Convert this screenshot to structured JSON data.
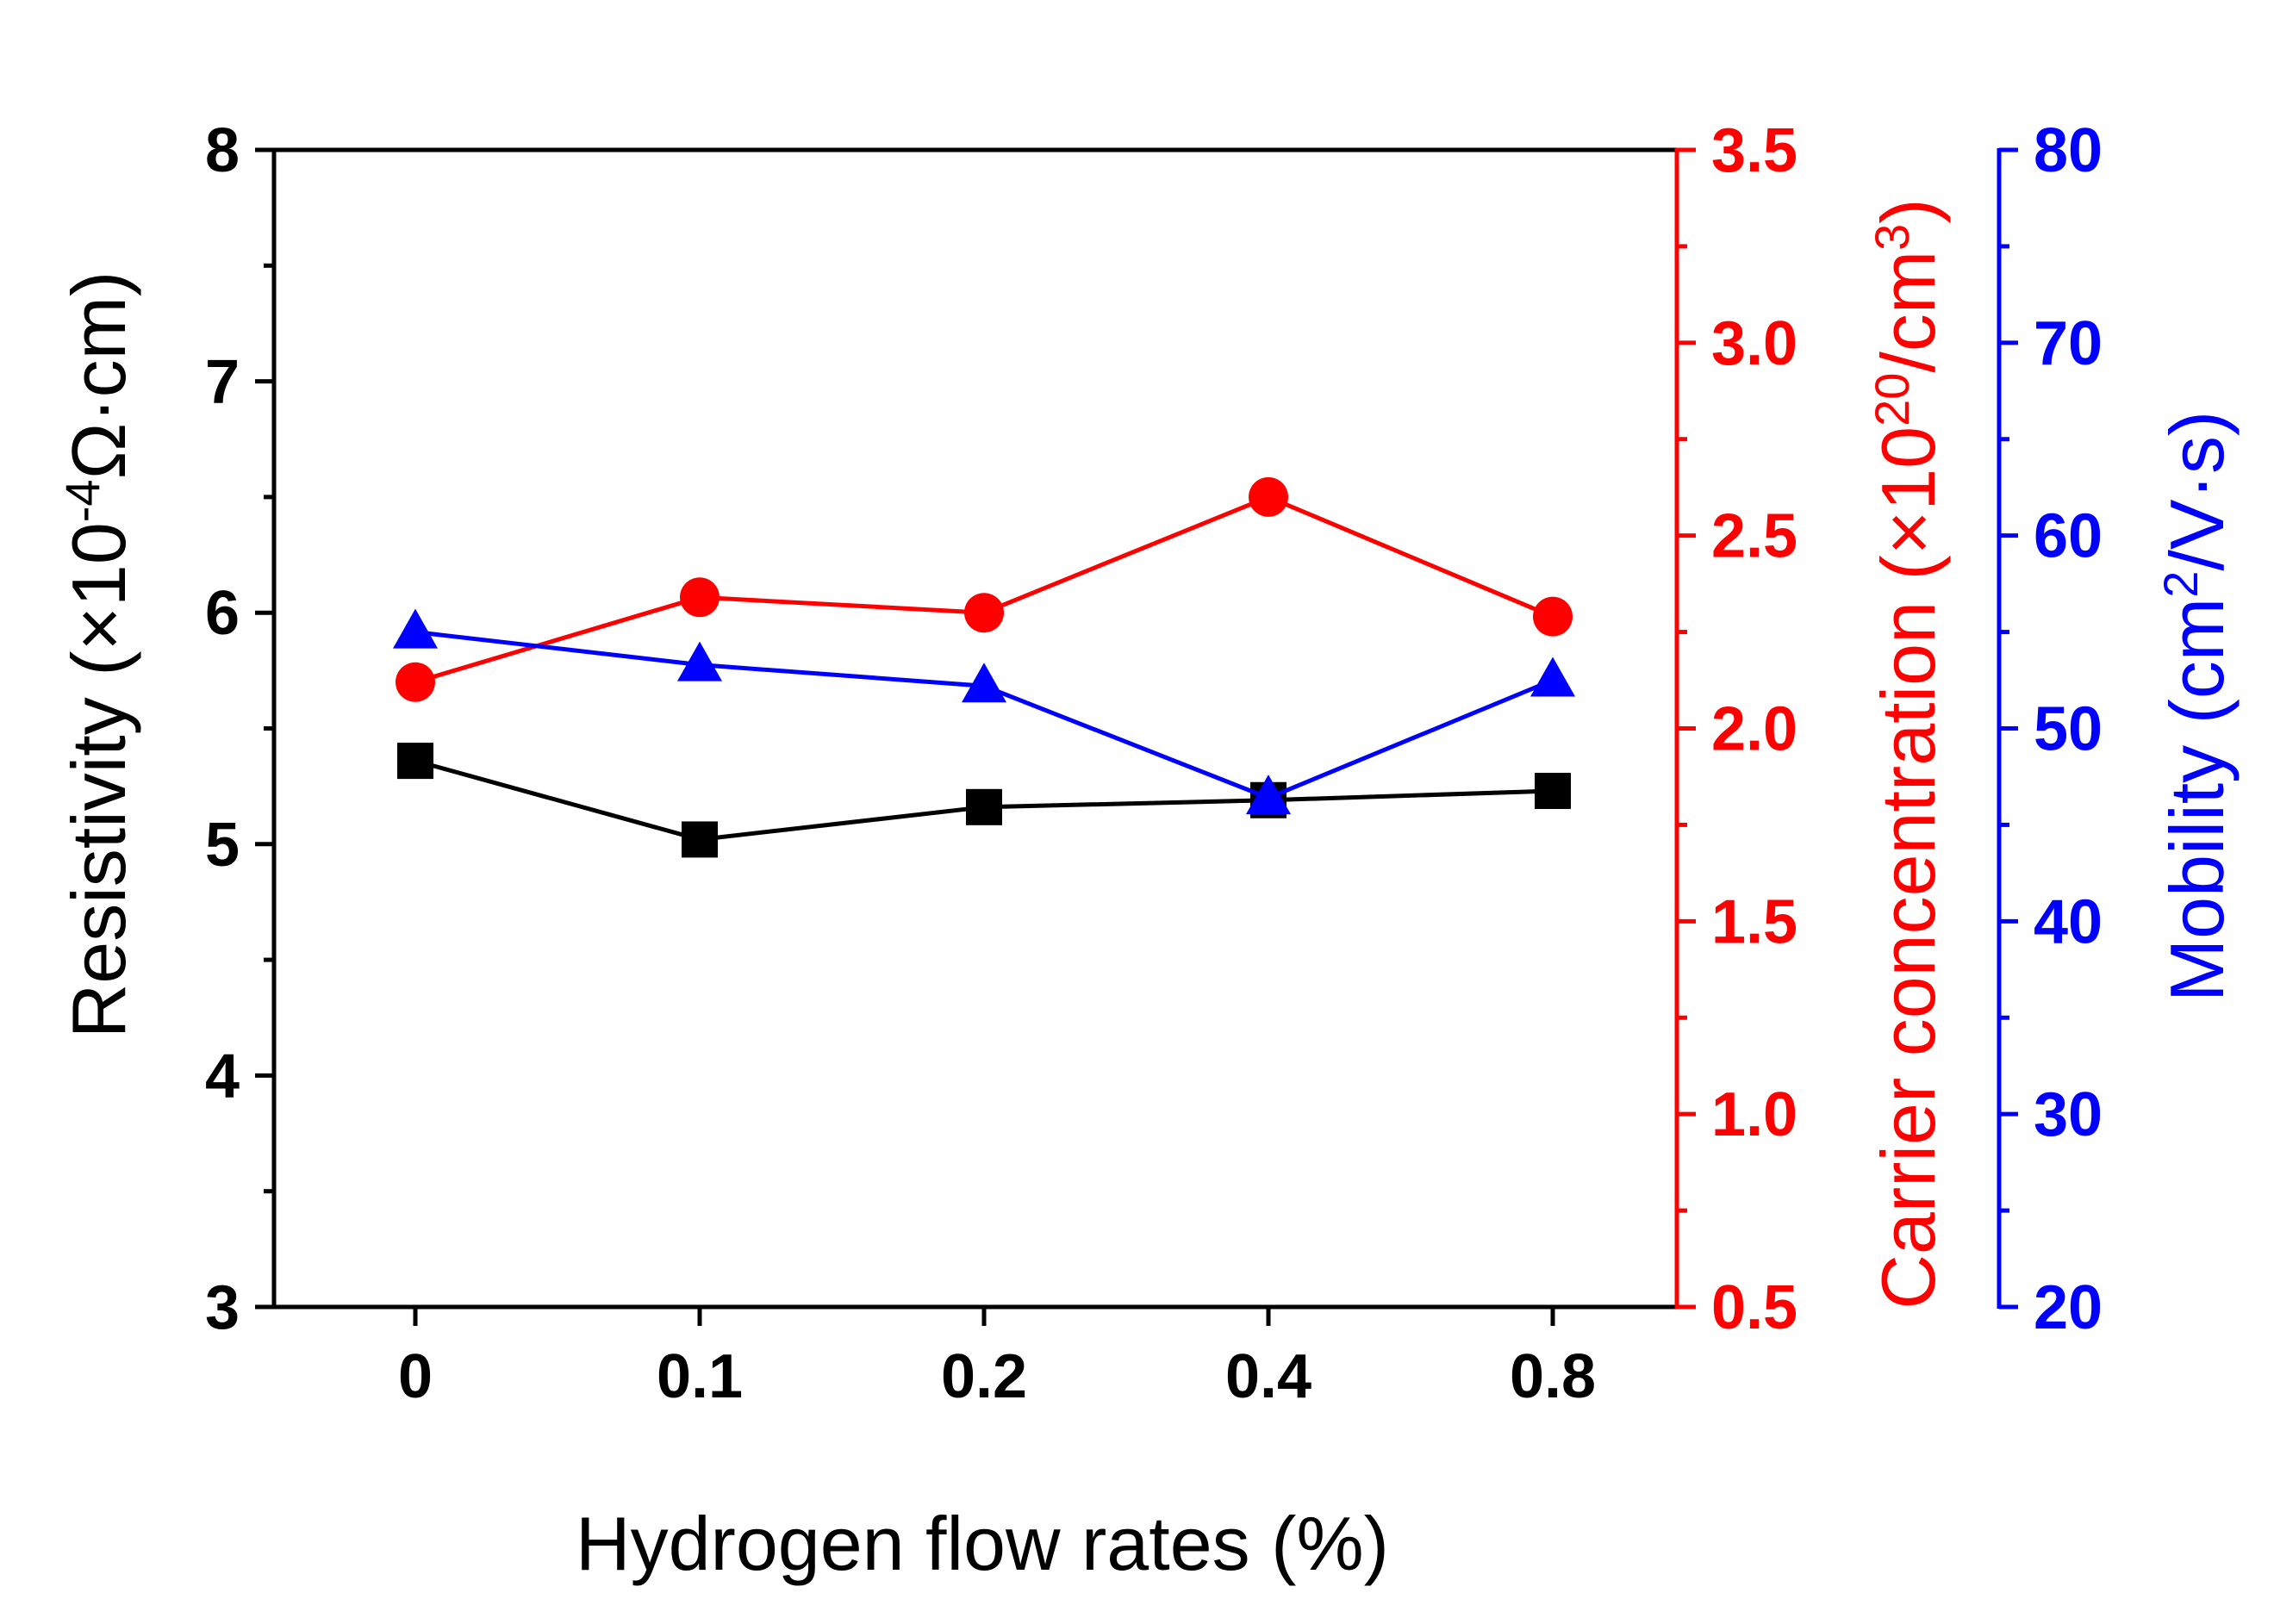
{
  "colors": {
    "resistivity": "#000000",
    "carrier": "#ff0000",
    "mobility": "#0000ff"
  },
  "chart_data": {
    "type": "line",
    "x": {
      "label": "Hydrogen flow rates (%)",
      "categories": [
        "0",
        "0.1",
        "0.2",
        "0.4",
        "0.8"
      ]
    },
    "axes": {
      "left": {
        "label_parts": [
          "Resistivity (×10",
          "-4",
          "Ω·cm)"
        ],
        "ylim": [
          3,
          8
        ],
        "major_ticks": [
          3,
          4,
          5,
          6,
          7,
          8
        ],
        "tick_labels": [
          "3",
          "4",
          "5",
          "6",
          "7",
          "8"
        ]
      },
      "right1": {
        "label_parts": [
          "Carrier concentration (×10",
          "20",
          "/cm",
          "3",
          ")"
        ],
        "ylim": [
          0.5,
          3.5
        ],
        "major_ticks": [
          0.5,
          1.0,
          1.5,
          2.0,
          2.5,
          3.0,
          3.5
        ],
        "tick_labels": [
          "0.5",
          "1.0",
          "1.5",
          "2.0",
          "2.5",
          "3.0",
          "3.5"
        ]
      },
      "right2": {
        "label_parts": [
          "Mobility (cm",
          "2",
          "/V·s)"
        ],
        "ylim": [
          20,
          80
        ],
        "major_ticks": [
          20,
          30,
          40,
          50,
          60,
          70,
          80
        ],
        "tick_labels": [
          "20",
          "30",
          "40",
          "50",
          "60",
          "70",
          "80"
        ]
      }
    },
    "series": [
      {
        "name": "Resistivity",
        "axis": "left",
        "marker": "square",
        "color": "#000000",
        "values": [
          5.36,
          5.02,
          5.16,
          5.19,
          5.23
        ]
      },
      {
        "name": "Carrier concentration",
        "axis": "right1",
        "marker": "circle",
        "color": "#ff0000",
        "values": [
          2.12,
          2.34,
          2.3,
          2.6,
          2.29
        ]
      },
      {
        "name": "Mobility",
        "axis": "right2",
        "marker": "triangle",
        "color": "#0000ff",
        "values": [
          55.0,
          53.3,
          52.2,
          46.4,
          52.5
        ]
      }
    ]
  }
}
